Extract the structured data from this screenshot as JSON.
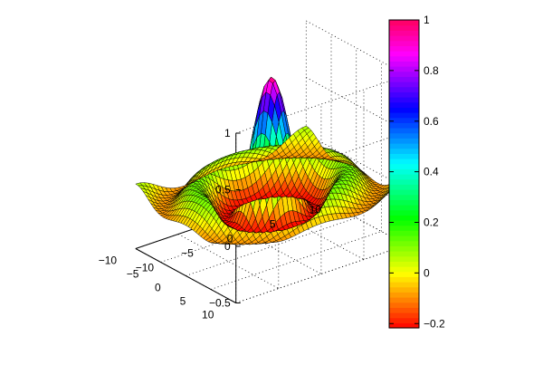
{
  "chart_data": {
    "type": "surface",
    "function": "z = sin(r)/r, r = sqrt(x^2 + y^2) + eps",
    "mesh_spacing": 0.5,
    "colormap": "hsv",
    "x": {
      "range": [
        -10,
        10
      ],
      "tick_values": [
        -10,
        -5,
        0,
        5,
        10
      ],
      "tick_labels": [
        "−10",
        "−5",
        "0",
        "5",
        "10"
      ]
    },
    "y": {
      "range": [
        -10,
        10
      ],
      "tick_values": [
        -10,
        -5,
        0,
        5,
        10
      ],
      "tick_labels": [
        "−10",
        "−5",
        "0",
        "5",
        "10"
      ]
    },
    "z": {
      "range": [
        -0.5,
        1
      ],
      "tick_values": [
        -0.5,
        0,
        0.5,
        1
      ],
      "tick_labels": [
        "−0.5",
        "0",
        "0.5",
        "1"
      ]
    },
    "sample_points": [
      {
        "r": 0,
        "z": 1.0
      },
      {
        "r": 4.49,
        "z": -0.217
      },
      {
        "r": 7.73,
        "z": 0.128
      },
      {
        "r": 10.0,
        "z": -0.054
      }
    ],
    "grid": true,
    "colorbar": {
      "placement": "right",
      "range": [
        -0.217,
        1.0
      ],
      "tick_values": [
        -0.2,
        0,
        0.2,
        0.4,
        0.6,
        0.8,
        1
      ],
      "tick_labels": [
        "−0.2",
        "0",
        "0.2",
        "0.4",
        "0.6",
        "0.8",
        "1"
      ]
    }
  }
}
